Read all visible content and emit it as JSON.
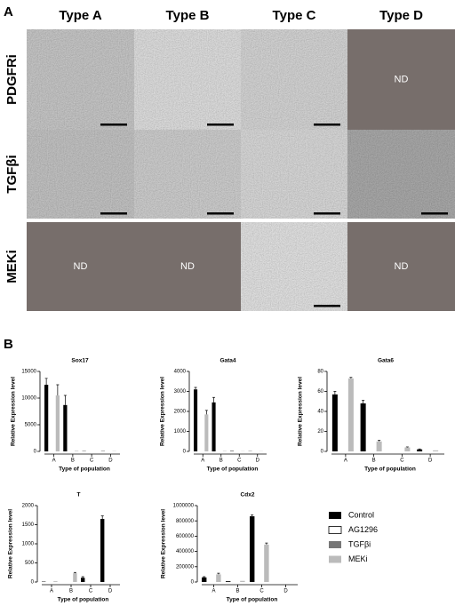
{
  "panel_a": {
    "label": "A",
    "columns": [
      "Type A",
      "Type B",
      "Type C",
      "Type D"
    ],
    "rows": [
      {
        "label": "PDGFRi",
        "cells": [
          null,
          null,
          null,
          "ND"
        ]
      },
      {
        "label": "TGFβi",
        "cells": [
          null,
          null,
          null,
          null
        ]
      },
      {
        "label": "MEKi",
        "cells": [
          "ND",
          "ND",
          null,
          "ND"
        ]
      }
    ]
  },
  "panel_b": {
    "label": "B",
    "legend": [
      {
        "name": "Control",
        "color": "#000000"
      },
      {
        "name": "AG1296",
        "color": "#ffffff"
      },
      {
        "name": "TGFβi",
        "color": "#777777"
      },
      {
        "name": "MEKi",
        "color": "#bbbbbb"
      }
    ]
  },
  "chart_data": [
    {
      "type": "bar",
      "title": "Sox17",
      "ylabel": "Relative Expression level",
      "xlabel": "Type of population",
      "categories": [
        "A",
        "B",
        "C",
        "D"
      ],
      "ylim": [
        0,
        15000
      ],
      "yticks": [
        0,
        5000,
        10000,
        15000
      ],
      "series": [
        {
          "values": [
            12500,
            8700,
            50,
            50
          ],
          "errors": [
            1200,
            1800,
            0,
            0
          ]
        },
        {
          "values": [
            null,
            null,
            null,
            null
          ]
        },
        {
          "values": [
            null,
            null,
            null,
            null
          ]
        },
        {
          "values": [
            10500,
            100,
            0,
            50
          ],
          "errors": [
            2000,
            0,
            0,
            0
          ]
        }
      ]
    },
    {
      "type": "bar",
      "title": "Gata4",
      "ylabel": "Relative Expression level",
      "xlabel": "Type of population",
      "categories": [
        "A",
        "B",
        "C",
        "D"
      ],
      "ylim": [
        0,
        4000
      ],
      "yticks": [
        0,
        1000,
        2000,
        3000,
        4000
      ],
      "series": [
        {
          "values": [
            3100,
            2450,
            20,
            10
          ],
          "errors": [
            100,
            250,
            0,
            0
          ]
        },
        {
          "values": [
            null,
            null,
            null,
            null
          ]
        },
        {
          "values": [
            null,
            null,
            null,
            null
          ]
        },
        {
          "values": [
            1850,
            20,
            10,
            10
          ],
          "errors": [
            200,
            0,
            0,
            0
          ]
        }
      ]
    },
    {
      "type": "bar",
      "title": "Gata6",
      "ylabel": "Relative Expression level",
      "xlabel": "Type of population",
      "categories": [
        "A",
        "B",
        "C",
        "D"
      ],
      "ylim": [
        0,
        80
      ],
      "yticks": [
        0,
        20,
        40,
        60,
        80
      ],
      "series": [
        {
          "values": [
            57,
            48,
            0,
            2
          ],
          "errors": [
            3,
            3,
            0,
            0.5
          ]
        },
        {
          "values": [
            null,
            null,
            null,
            null
          ]
        },
        {
          "values": [
            null,
            null,
            null,
            null
          ]
        },
        {
          "values": [
            73,
            10,
            4,
            1
          ],
          "errors": [
            1,
            1,
            0.5,
            0
          ]
        }
      ]
    },
    {
      "type": "bar",
      "title": "T",
      "ylabel": "Relative Expression level",
      "xlabel": "Type of population",
      "categories": [
        "A",
        "B",
        "C",
        "D"
      ],
      "ylim": [
        0,
        2000
      ],
      "yticks": [
        0,
        500,
        1000,
        1500,
        2000
      ],
      "series": [
        {
          "values": [
            10,
            0,
            110,
            1650
          ],
          "errors": [
            0,
            0,
            30,
            80
          ]
        },
        {
          "values": [
            null,
            null,
            null,
            null
          ]
        },
        {
          "values": [
            null,
            null,
            null,
            null
          ]
        },
        {
          "values": [
            20,
            230,
            0,
            0
          ],
          "errors": [
            0,
            20,
            0,
            0
          ]
        }
      ]
    },
    {
      "type": "bar",
      "title": "Cdx2",
      "ylabel": "Relative Expression level",
      "xlabel": "Type of population",
      "categories": [
        "A",
        "B",
        "C",
        "D"
      ],
      "ylim": [
        0,
        1000000
      ],
      "yticks": [
        0,
        200000,
        400000,
        600000,
        800000,
        1000000
      ],
      "series": [
        {
          "values": [
            60000,
            10000,
            860000,
            0
          ],
          "errors": [
            10000,
            0,
            20000,
            0
          ]
        },
        {
          "values": [
            null,
            null,
            null,
            null
          ]
        },
        {
          "values": [
            null,
            null,
            null,
            null
          ]
        },
        {
          "values": [
            100000,
            15000,
            490000,
            0
          ],
          "errors": [
            15000,
            0,
            20000,
            0
          ]
        }
      ]
    }
  ]
}
